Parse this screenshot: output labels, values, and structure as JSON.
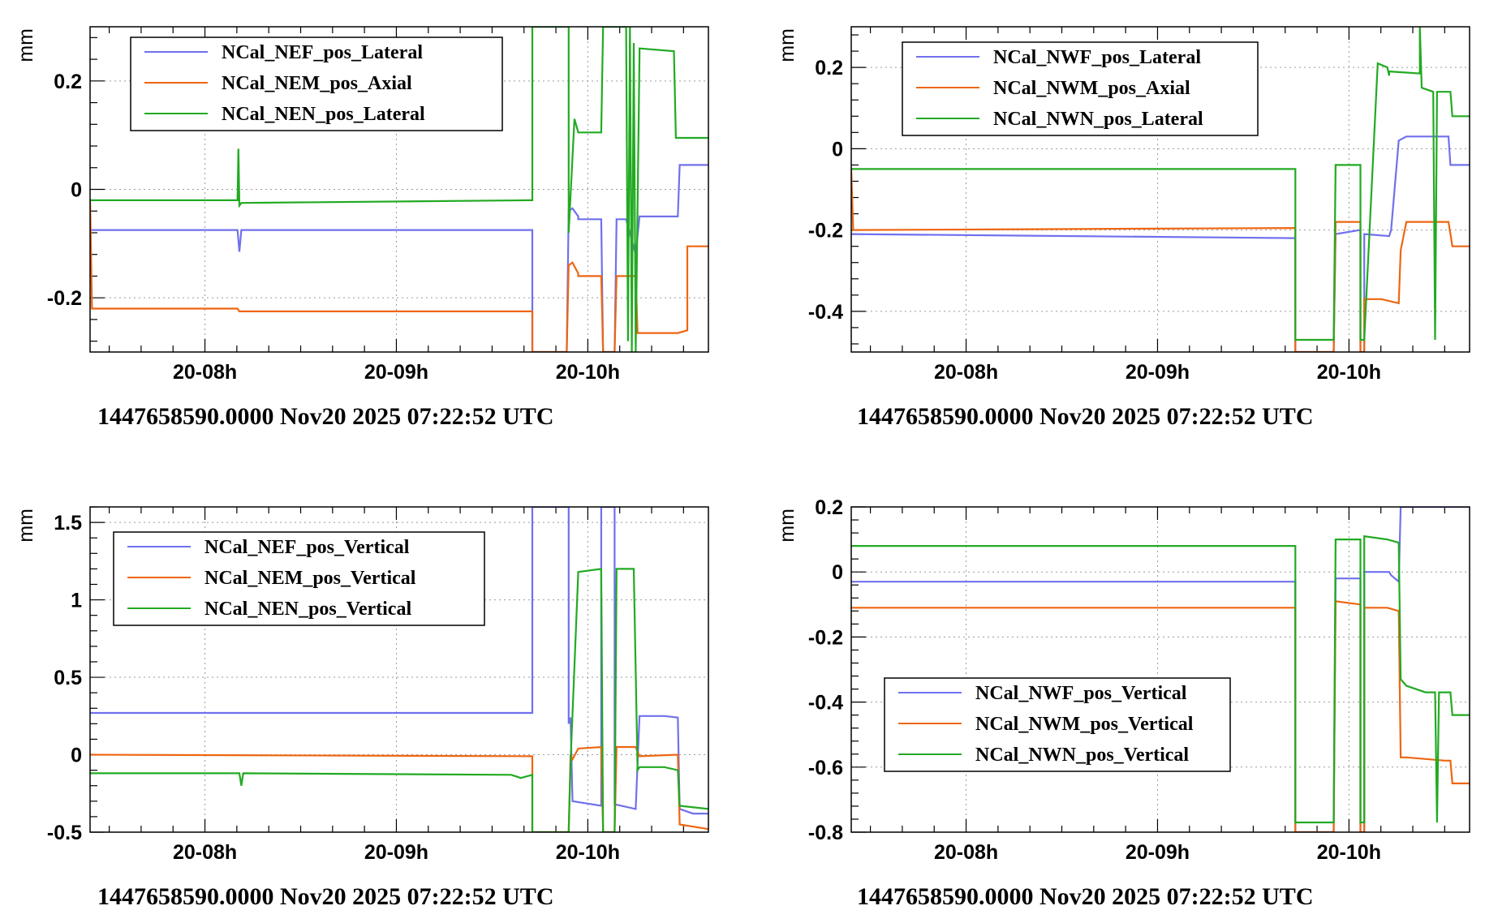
{
  "colors": {
    "blue": "#7070ee",
    "orange": "#ee6611",
    "green": "#22aa22"
  },
  "chart_data": [
    {
      "type": "line",
      "title": "",
      "xlabel": "1447658590.0000 Nov20 2025 07:22:52 UTC",
      "ylabel": "mm",
      "x_unit": "hours",
      "xlim": [
        7.4,
        10.63
      ],
      "ylim": [
        -0.3,
        0.3
      ],
      "x_ticks": [
        {
          "v": 8,
          "label": "20-08h"
        },
        {
          "v": 9,
          "label": "20-09h"
        },
        {
          "v": 10,
          "label": "20-10h"
        }
      ],
      "y_ticks": [
        {
          "v": -0.2,
          "label": "-0.2"
        },
        {
          "v": 0,
          "label": "0"
        },
        {
          "v": 0.2,
          "label": "0.2"
        }
      ],
      "legend": "top-left",
      "series": [
        {
          "name": "NCal_NEF_pos_Lateral",
          "color": "blue",
          "x": [
            7.4,
            8.17,
            8.18,
            8.19,
            9.71,
            9.71,
            9.89,
            9.9,
            9.92,
            9.95,
            9.95,
            10.07,
            10.08,
            10.14,
            10.15,
            10.2,
            10.25,
            10.27,
            10.47,
            10.48,
            10.63
          ],
          "y": [
            -0.075,
            -0.075,
            -0.115,
            -0.075,
            -0.075,
            -0.3,
            -0.3,
            -0.04,
            -0.035,
            -0.05,
            -0.055,
            -0.055,
            -0.3,
            -0.3,
            -0.055,
            -0.055,
            -0.12,
            -0.05,
            -0.05,
            0.045,
            0.045
          ]
        },
        {
          "name": "NCal_NEM_pos_Axial",
          "color": "orange",
          "x": [
            7.4,
            7.41,
            8.17,
            8.18,
            9.71,
            9.71,
            9.89,
            9.9,
            9.92,
            9.95,
            9.95,
            10.07,
            10.08,
            10.14,
            10.15,
            10.25,
            10.26,
            10.47,
            10.52,
            10.52,
            10.63
          ],
          "y": [
            -0.02,
            -0.22,
            -0.22,
            -0.225,
            -0.225,
            -0.3,
            -0.3,
            -0.14,
            -0.135,
            -0.155,
            -0.16,
            -0.16,
            -0.3,
            -0.3,
            -0.16,
            -0.16,
            -0.265,
            -0.265,
            -0.26,
            -0.105,
            -0.105
          ]
        },
        {
          "name": "NCal_NEN_pos_Lateral",
          "color": "green",
          "x": [
            7.4,
            8.17,
            8.175,
            8.18,
            8.19,
            9.69,
            9.71,
            9.71,
            9.89,
            9.9,
            9.9,
            9.93,
            9.95,
            10.07,
            10.08,
            10.11,
            10.14,
            10.15,
            10.2,
            10.21,
            10.22,
            10.23,
            10.24,
            10.25,
            10.27,
            10.27,
            10.45,
            10.46,
            10.63
          ],
          "y": [
            -0.02,
            -0.02,
            0.075,
            -0.03,
            -0.025,
            -0.02,
            -0.02,
            0.3,
            0.3,
            0.3,
            -0.08,
            0.13,
            0.105,
            0.105,
            0.3,
            0.3,
            0.3,
            0.3,
            0.3,
            -0.28,
            0.3,
            -0.3,
            0.27,
            -0.3,
            0.25,
            0.26,
            0.255,
            0.095,
            0.095
          ]
        }
      ]
    },
    {
      "type": "line",
      "title": "",
      "xlabel": "1447658590.0000 Nov20 2025 07:22:52 UTC",
      "ylabel": "mm",
      "x_unit": "hours",
      "xlim": [
        7.4,
        10.63
      ],
      "ylim": [
        -0.5,
        0.3
      ],
      "x_ticks": [
        {
          "v": 8,
          "label": "20-08h"
        },
        {
          "v": 9,
          "label": "20-09h"
        },
        {
          "v": 10,
          "label": "20-10h"
        }
      ],
      "y_ticks": [
        {
          "v": -0.4,
          "label": "-0.4"
        },
        {
          "v": -0.2,
          "label": "-0.2"
        },
        {
          "v": 0,
          "label": "0"
        },
        {
          "v": 0.2,
          "label": "0.2"
        }
      ],
      "legend": "top-left",
      "series": [
        {
          "name": "NCal_NWF_pos_Lateral",
          "color": "blue",
          "x": [
            7.4,
            9.72,
            9.72,
            9.92,
            9.92,
            9.93,
            10.06,
            10.06,
            10.08,
            10.08,
            10.21,
            10.22,
            10.26,
            10.3,
            10.52,
            10.53,
            10.63
          ],
          "y": [
            -0.21,
            -0.22,
            -0.5,
            -0.5,
            -0.5,
            -0.21,
            -0.2,
            -0.5,
            -0.5,
            -0.21,
            -0.215,
            -0.2,
            0.02,
            0.03,
            0.03,
            -0.04,
            -0.04
          ]
        },
        {
          "name": "NCal_NWM_pos_Axial",
          "color": "orange",
          "x": [
            7.4,
            7.41,
            9.72,
            9.72,
            9.92,
            9.92,
            9.93,
            10.06,
            10.06,
            10.08,
            10.08,
            10.17,
            10.26,
            10.27,
            10.3,
            10.52,
            10.54,
            10.63
          ],
          "y": [
            -0.05,
            -0.2,
            -0.195,
            -0.5,
            -0.5,
            -0.5,
            -0.18,
            -0.18,
            -0.5,
            -0.5,
            -0.37,
            -0.37,
            -0.38,
            -0.25,
            -0.18,
            -0.18,
            -0.24,
            -0.24
          ]
        },
        {
          "name": "NCal_NWN_pos_Lateral",
          "color": "green",
          "x": [
            7.4,
            9.72,
            9.72,
            9.92,
            9.92,
            9.93,
            10.06,
            10.06,
            10.08,
            10.08,
            10.15,
            10.2,
            10.21,
            10.21,
            10.37,
            10.37,
            10.38,
            10.44,
            10.45,
            10.46,
            10.53,
            10.54,
            10.63
          ],
          "y": [
            -0.05,
            -0.05,
            -0.47,
            -0.47,
            -0.47,
            -0.04,
            -0.04,
            -0.47,
            -0.47,
            -0.47,
            0.21,
            0.2,
            0.18,
            0.19,
            0.185,
            0.3,
            0.15,
            0.14,
            -0.47,
            0.14,
            0.14,
            0.08,
            0.08
          ]
        }
      ]
    },
    {
      "type": "line",
      "title": "",
      "xlabel": "1447658590.0000 Nov20 2025 07:22:52 UTC",
      "ylabel": "mm",
      "x_unit": "hours",
      "xlim": [
        7.4,
        10.63
      ],
      "ylim": [
        -0.5,
        1.6
      ],
      "x_ticks": [
        {
          "v": 8,
          "label": "20-08h"
        },
        {
          "v": 9,
          "label": "20-09h"
        },
        {
          "v": 10,
          "label": "20-10h"
        }
      ],
      "y_ticks": [
        {
          "v": -0.5,
          "label": "-0.5"
        },
        {
          "v": 0,
          "label": "0"
        },
        {
          "v": 0.5,
          "label": "0.5"
        },
        {
          "v": 1,
          "label": "1"
        },
        {
          "v": 1.5,
          "label": "1.5"
        }
      ],
      "legend": "top-left",
      "series": [
        {
          "name": "NCal_NEF_pos_Vertical",
          "color": "blue",
          "x": [
            7.4,
            9.71,
            9.71,
            9.9,
            9.9,
            9.91,
            9.92,
            10.07,
            10.07,
            10.14,
            10.14,
            10.25,
            10.27,
            10.4,
            10.47,
            10.48,
            10.55,
            10.63
          ],
          "y": [
            0.27,
            0.27,
            1.6,
            1.6,
            0.2,
            0.24,
            -0.3,
            -0.33,
            1.6,
            1.6,
            -0.32,
            -0.35,
            0.25,
            0.25,
            0.24,
            -0.35,
            -0.38,
            -0.38
          ]
        },
        {
          "name": "NCal_NEM_pos_Vertical",
          "color": "orange",
          "x": [
            7.4,
            9.71,
            9.71,
            9.9,
            9.91,
            9.92,
            9.95,
            10.07,
            10.08,
            10.14,
            10.15,
            10.25,
            10.27,
            10.47,
            10.48,
            10.63
          ],
          "y": [
            0.0,
            -0.01,
            -0.5,
            -0.5,
            0.0,
            -0.03,
            0.04,
            0.05,
            -0.5,
            -0.5,
            0.05,
            0.05,
            -0.01,
            0.0,
            -0.45,
            -0.48
          ]
        },
        {
          "name": "NCal_NEN_pos_Vertical",
          "color": "green",
          "x": [
            7.4,
            8.18,
            8.19,
            8.2,
            9.6,
            9.65,
            9.71,
            9.71,
            9.9,
            9.91,
            9.95,
            10.07,
            10.08,
            10.14,
            10.15,
            10.24,
            10.26,
            10.27,
            10.4,
            10.47,
            10.48,
            10.63
          ],
          "y": [
            -0.12,
            -0.12,
            -0.2,
            -0.12,
            -0.13,
            -0.15,
            -0.13,
            -0.5,
            -0.5,
            -0.05,
            1.18,
            1.2,
            -0.5,
            -0.5,
            1.2,
            1.2,
            -0.1,
            -0.08,
            -0.08,
            -0.1,
            -0.33,
            -0.35
          ]
        }
      ]
    },
    {
      "type": "line",
      "title": "",
      "xlabel": "1447658590.0000 Nov20 2025 07:22:52 UTC",
      "ylabel": "mm",
      "x_unit": "hours",
      "xlim": [
        7.4,
        10.63
      ],
      "ylim": [
        -0.8,
        0.2
      ],
      "x_ticks": [
        {
          "v": 8,
          "label": "20-08h"
        },
        {
          "v": 9,
          "label": "20-09h"
        },
        {
          "v": 10,
          "label": "20-10h"
        }
      ],
      "y_ticks": [
        {
          "v": -0.8,
          "label": "-0.8"
        },
        {
          "v": -0.6,
          "label": "-0.6"
        },
        {
          "v": -0.4,
          "label": "-0.4"
        },
        {
          "v": -0.2,
          "label": "-0.2"
        },
        {
          "v": 0,
          "label": "0"
        },
        {
          "v": 0.2,
          "label": "0.2"
        }
      ],
      "legend": "bottom-left",
      "series": [
        {
          "name": "NCal_NWF_pos_Vertical",
          "color": "blue",
          "x": [
            7.4,
            9.72,
            9.72,
            9.92,
            9.92,
            9.93,
            10.06,
            10.06,
            10.08,
            10.08,
            10.21,
            10.22,
            10.26,
            10.27,
            10.63
          ],
          "y": [
            -0.03,
            -0.03,
            -0.8,
            -0.8,
            -0.8,
            -0.02,
            -0.02,
            -0.8,
            -0.8,
            0.0,
            0.0,
            -0.01,
            -0.03,
            0.2,
            0.2
          ]
        },
        {
          "name": "NCal_NWM_pos_Vertical",
          "color": "orange",
          "x": [
            7.4,
            9.72,
            9.72,
            9.92,
            9.92,
            9.93,
            10.06,
            10.06,
            10.08,
            10.08,
            10.2,
            10.26,
            10.27,
            10.3,
            10.5,
            10.53,
            10.54,
            10.63
          ],
          "y": [
            -0.11,
            -0.11,
            -0.8,
            -0.8,
            -0.8,
            -0.09,
            -0.1,
            -0.8,
            -0.8,
            -0.11,
            -0.11,
            -0.12,
            -0.57,
            -0.57,
            -0.58,
            -0.58,
            -0.65,
            -0.65
          ]
        },
        {
          "name": "NCal_NWN_pos_Vertical",
          "color": "green",
          "x": [
            7.4,
            9.72,
            9.72,
            9.92,
            9.92,
            9.93,
            10.06,
            10.06,
            10.08,
            10.08,
            10.2,
            10.26,
            10.27,
            10.3,
            10.4,
            10.45,
            10.46,
            10.47,
            10.53,
            10.54,
            10.63
          ],
          "y": [
            0.08,
            0.08,
            -0.77,
            -0.77,
            -0.77,
            0.1,
            0.1,
            -0.77,
            -0.77,
            0.11,
            0.1,
            0.09,
            -0.33,
            -0.35,
            -0.37,
            -0.37,
            -0.77,
            -0.37,
            -0.37,
            -0.44,
            -0.44
          ]
        }
      ]
    }
  ]
}
